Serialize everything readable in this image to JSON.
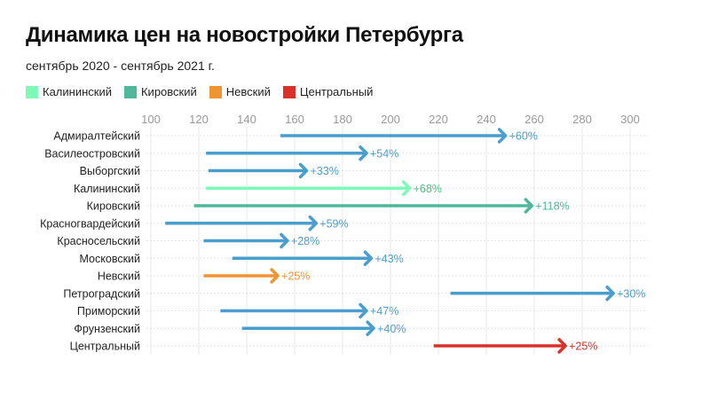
{
  "chart_data": {
    "type": "arrow",
    "title": "Динамика цен на новостройки Петербурга",
    "subtitle": "сентябрь 2020 - сентябрь 2021 г.",
    "legend": [
      {
        "name": "Калининский",
        "color": "#7ef9b7"
      },
      {
        "name": "Кировский",
        "color": "#4fb79a"
      },
      {
        "name": "Невский",
        "color": "#ef9433"
      },
      {
        "name": "Центральный",
        "color": "#d9302a"
      }
    ],
    "default_color": "#4a9ecd",
    "xlim": [
      100,
      300
    ],
    "xticks": [
      100,
      120,
      140,
      160,
      180,
      200,
      220,
      240,
      260,
      280,
      300
    ],
    "grid": true,
    "rows": [
      {
        "category": "Адмиралтейский",
        "start": 154,
        "end": 248,
        "label": "+60%"
      },
      {
        "category": "Василеостровский",
        "start": 123,
        "end": 190,
        "label": "+54%"
      },
      {
        "category": "Выборгский",
        "start": 124,
        "end": 165,
        "label": "+33%"
      },
      {
        "category": "Калининский",
        "start": 123,
        "end": 208,
        "label": "+68%",
        "color": "#7ef9b7",
        "label_color": "#4fbf80"
      },
      {
        "category": "Кировский",
        "start": 118,
        "end": 259,
        "label": "+118%",
        "color": "#4fb79a",
        "label_color": "#4fb79a"
      },
      {
        "category": "Красногвардейский",
        "start": 106,
        "end": 169,
        "label": "+59%"
      },
      {
        "category": "Красносельский",
        "start": 122,
        "end": 157,
        "label": "+28%"
      },
      {
        "category": "Московский",
        "start": 134,
        "end": 192,
        "label": "+43%"
      },
      {
        "category": "Невский",
        "start": 122,
        "end": 153,
        "label": "+25%",
        "color": "#ef9433",
        "label_color": "#ef9433"
      },
      {
        "category": "Петроградский",
        "start": 225,
        "end": 293,
        "label": "+30%"
      },
      {
        "category": "Приморский",
        "start": 129,
        "end": 190,
        "label": "+47%"
      },
      {
        "category": "Фрунзенский",
        "start": 138,
        "end": 193,
        "label": "+40%"
      },
      {
        "category": "Центральный",
        "start": 218,
        "end": 273,
        "label": "+25%",
        "color": "#d9302a",
        "label_color": "#d9302a"
      }
    ]
  }
}
